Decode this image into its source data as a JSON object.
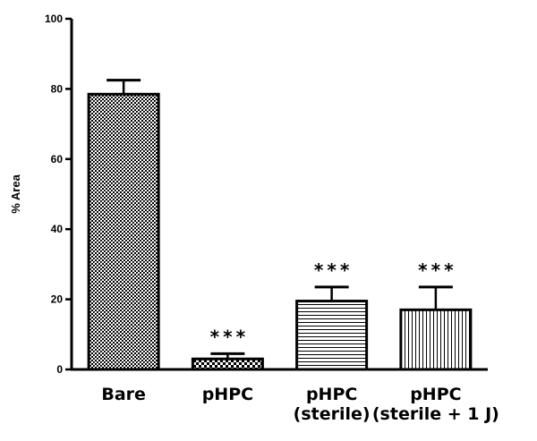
{
  "chart_data": {
    "type": "bar",
    "title": "",
    "xlabel": "",
    "ylabel": "% Area",
    "ylim": [
      0,
      100
    ],
    "yticks": [
      0,
      20,
      40,
      60,
      80,
      100
    ],
    "grid": false,
    "categories": [
      [
        "Bare"
      ],
      [
        "pHPC"
      ],
      [
        "pHPC",
        "(sterile)"
      ],
      [
        "pHPC",
        "(sterile + 1 J)"
      ]
    ],
    "values": [
      78.5,
      3.0,
      19.5,
      17.0
    ],
    "errors": [
      4.0,
      1.5,
      4.0,
      6.5
    ],
    "annotations": [
      "",
      "***",
      "***",
      "***"
    ],
    "patterns": [
      "crosshatch-dense",
      "checker",
      "horizontal-lines",
      "vertical-lines"
    ]
  }
}
